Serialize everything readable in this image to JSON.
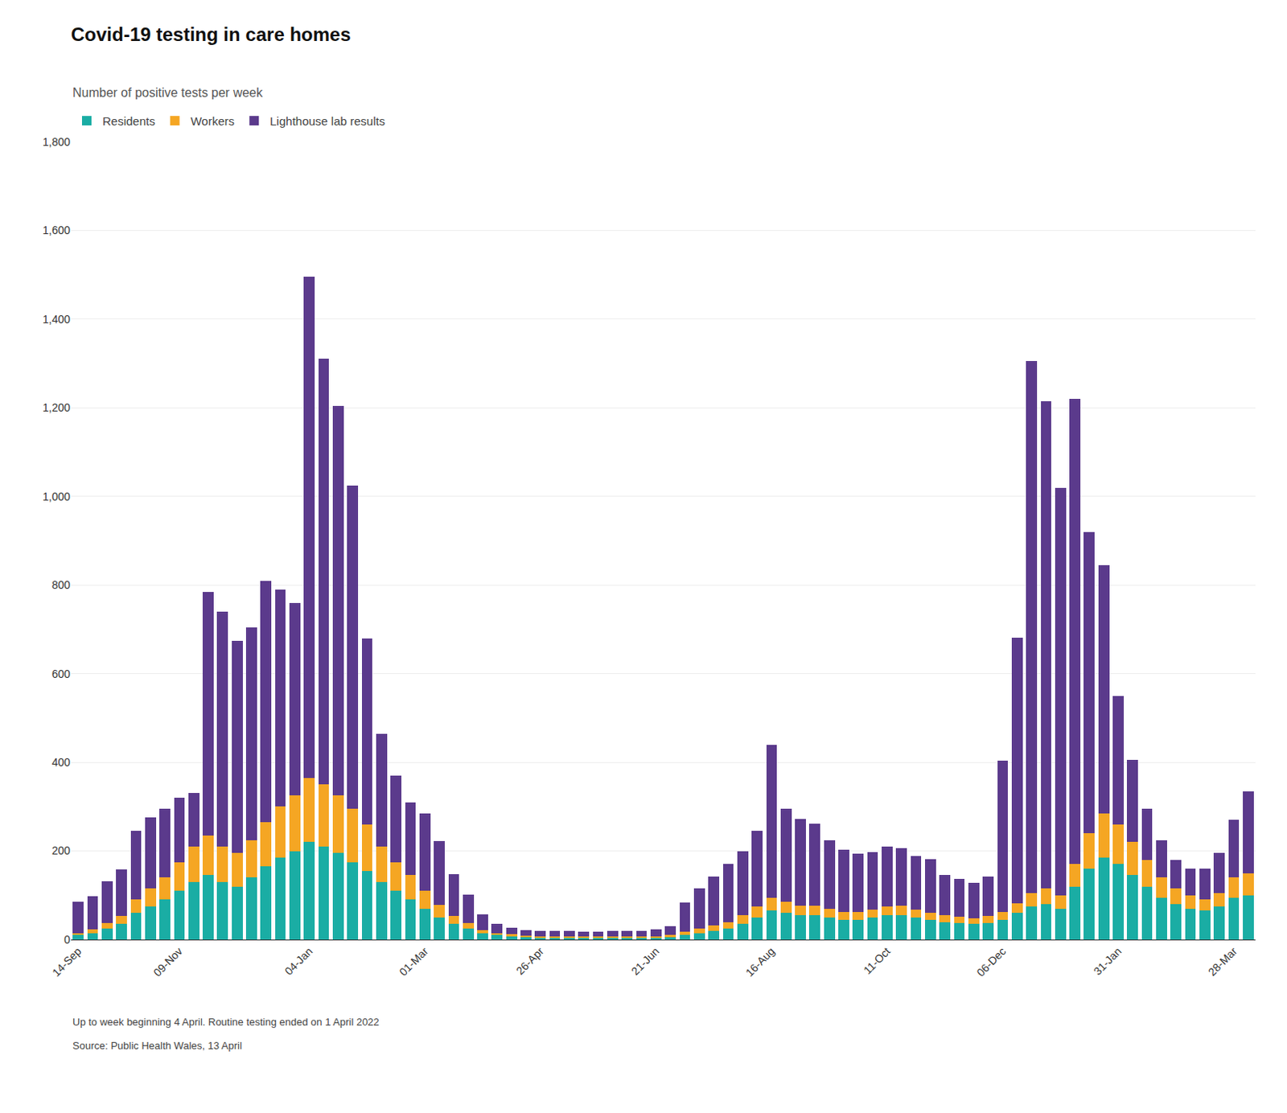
{
  "chart_data": {
    "type": "bar",
    "stacked": true,
    "title": "Covid-19 testing in care homes",
    "subtitle": "Number of positive tests per week",
    "annotations": [
      "Up to week beginning 4 April. Routine testing ended on 1 April 2022",
      "Source: Public Health Wales, 13 April"
    ],
    "categories": [
      "14-Sep",
      null,
      null,
      null,
      null,
      null,
      null,
      "09-Nov",
      null,
      null,
      null,
      null,
      null,
      null,
      null,
      null,
      "04-Jan",
      null,
      null,
      null,
      null,
      null,
      null,
      null,
      "01-Mar",
      null,
      null,
      null,
      null,
      null,
      null,
      null,
      "26-Apr",
      null,
      null,
      null,
      null,
      null,
      null,
      null,
      "21-Jun",
      null,
      null,
      null,
      null,
      null,
      null,
      null,
      "16-Aug",
      null,
      null,
      null,
      null,
      null,
      null,
      null,
      "11-Oct",
      null,
      null,
      null,
      null,
      null,
      null,
      null,
      "06-Dec",
      null,
      null,
      null,
      null,
      null,
      null,
      null,
      "31-Jan",
      null,
      null,
      null,
      null,
      null,
      null,
      null,
      "28-Mar",
      null
    ],
    "series": [
      {
        "name": "Residents",
        "color": "#1AADA4",
        "values": [
          10,
          15,
          25,
          35,
          60,
          75,
          90,
          110,
          130,
          145,
          130,
          120,
          140,
          165,
          185,
          200,
          220,
          210,
          195,
          175,
          155,
          130,
          110,
          90,
          70,
          50,
          35,
          25,
          15,
          10,
          8,
          6,
          5,
          5,
          5,
          5,
          5,
          5,
          5,
          5,
          5,
          5,
          10,
          15,
          20,
          25,
          35,
          50,
          65,
          60,
          55,
          55,
          50,
          45,
          45,
          50,
          55,
          55,
          50,
          45,
          40,
          38,
          35,
          38,
          45,
          60,
          75,
          80,
          70,
          120,
          160,
          185,
          170,
          145,
          120,
          95,
          80,
          70,
          65,
          75,
          95,
          100
        ]
      },
      {
        "name": "Workers",
        "color": "#F5A623",
        "values": [
          5,
          8,
          12,
          18,
          30,
          40,
          50,
          65,
          80,
          90,
          80,
          75,
          85,
          100,
          115,
          125,
          145,
          140,
          130,
          120,
          105,
          80,
          65,
          55,
          40,
          28,
          18,
          12,
          7,
          5,
          4,
          3,
          3,
          3,
          3,
          3,
          3,
          3,
          3,
          3,
          3,
          5,
          8,
          10,
          12,
          15,
          20,
          25,
          30,
          25,
          22,
          22,
          20,
          18,
          18,
          18,
          20,
          22,
          18,
          16,
          15,
          14,
          13,
          15,
          18,
          22,
          30,
          35,
          30,
          50,
          80,
          100,
          90,
          75,
          60,
          45,
          35,
          30,
          25,
          30,
          45,
          50
        ]
      },
      {
        "name": "Lighthouse lab results",
        "color": "#5B3A8C",
        "values": [
          70,
          75,
          95,
          105,
          155,
          160,
          155,
          145,
          120,
          550,
          530,
          480,
          480,
          545,
          490,
          435,
          1130,
          960,
          880,
          730,
          420,
          255,
          195,
          165,
          175,
          145,
          95,
          65,
          35,
          20,
          15,
          12,
          12,
          12,
          12,
          10,
          10,
          12,
          12,
          12,
          15,
          20,
          65,
          90,
          110,
          130,
          145,
          170,
          345,
          210,
          195,
          185,
          155,
          140,
          130,
          130,
          135,
          130,
          120,
          120,
          90,
          85,
          80,
          90,
          340,
          600,
          1200,
          1100,
          920,
          1050,
          680,
          560,
          290,
          185,
          115,
          85,
          65,
          60,
          70,
          90,
          130,
          185
        ]
      }
    ],
    "ylim": [
      0,
      1800
    ],
    "yticks": [
      0,
      200,
      400,
      600,
      800,
      {
        "value": 1000,
        "label": "1,000"
      },
      {
        "value": 1200,
        "label": "1,200"
      },
      {
        "value": 1400,
        "label": "1,400"
      },
      {
        "value": 1600,
        "label": "1,600"
      },
      {
        "value": 1800,
        "label": "1,800"
      }
    ],
    "grid": true,
    "legend": "top left"
  }
}
